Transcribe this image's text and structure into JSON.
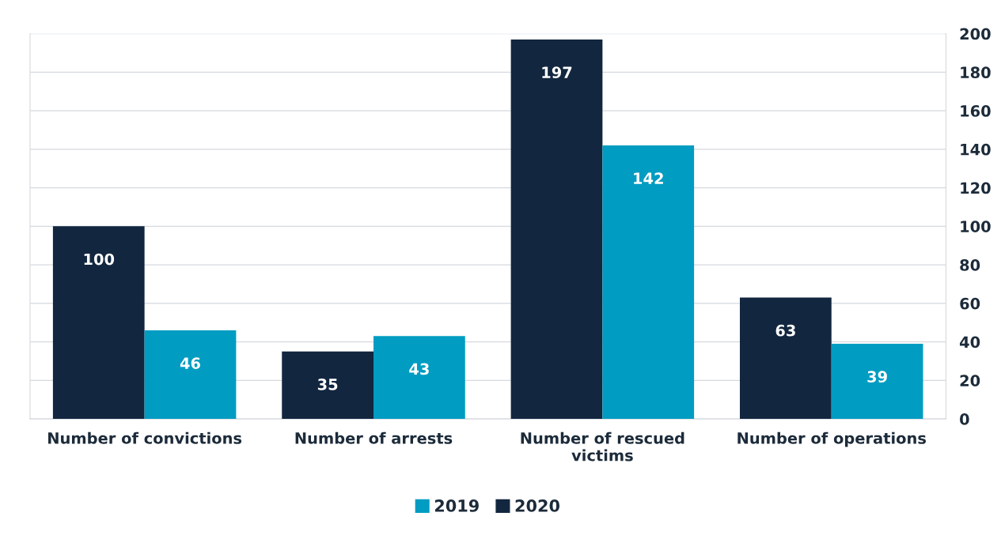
{
  "chart_data": {
    "type": "bar",
    "categories": [
      "Number of convictions",
      "Number of arrests",
      "Number of rescued victims",
      "Number of operations"
    ],
    "series": [
      {
        "name": "2020",
        "color": "#12263f",
        "values": [
          100,
          35,
          197,
          63
        ]
      },
      {
        "name": "2019",
        "color": "#009cc2",
        "values": [
          46,
          43,
          142,
          39
        ]
      }
    ],
    "ylim": [
      0,
      200
    ],
    "yticks": [
      0,
      20,
      40,
      60,
      80,
      100,
      120,
      140,
      160,
      180,
      200
    ],
    "grid": "y",
    "legend": "bottom",
    "data_labels": true
  }
}
